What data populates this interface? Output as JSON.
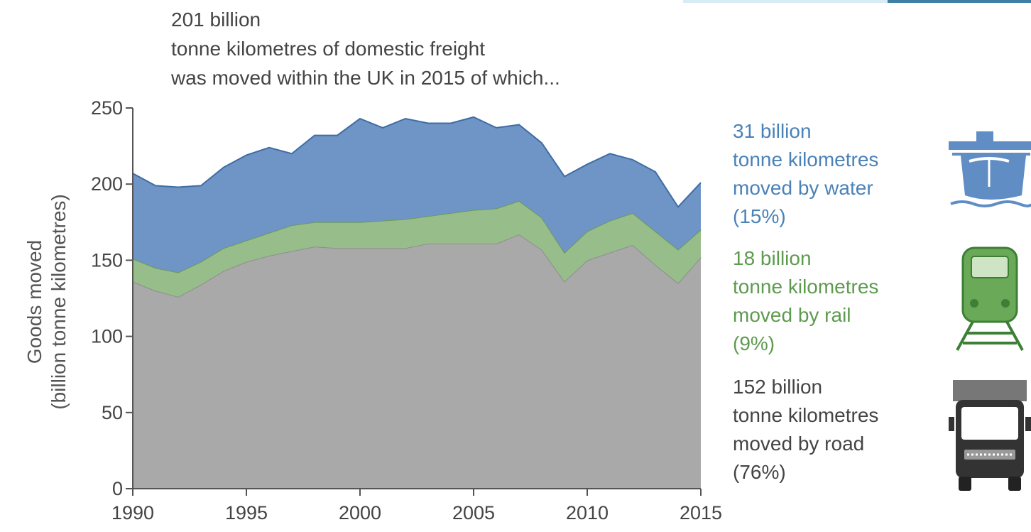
{
  "title_lines": [
    "201 billion",
    "tonne kilometres of domestic freight",
    "was moved within the UK in 2015 of which..."
  ],
  "legend": {
    "water": {
      "lines": [
        "31 billion",
        "tonne kilometres",
        "moved by water",
        "(15%)"
      ],
      "icon": "ship-icon"
    },
    "rail": {
      "lines": [
        "18 billion",
        "tonne kilometres",
        "moved by rail",
        "(9%)"
      ],
      "icon": "train-icon"
    },
    "road": {
      "lines": [
        "152 billion",
        "tonne kilometres",
        "moved by road",
        "(76%)"
      ],
      "icon": "truck-icon"
    }
  },
  "colors": {
    "water": "#6f94c6",
    "rail": "#97be8a",
    "road": "#a9a9a9",
    "water_text": "#4a82b8",
    "rail_text": "#5e9a4f",
    "road_text": "#444444"
  },
  "chart_data": {
    "type": "area",
    "stacked": true,
    "ylabel": [
      "Goods moved",
      "(billion tonne kilometres)"
    ],
    "xlabel": "",
    "x": [
      1990,
      1991,
      1992,
      1993,
      1994,
      1995,
      1996,
      1997,
      1998,
      1999,
      2000,
      2001,
      2002,
      2003,
      2004,
      2005,
      2006,
      2007,
      2008,
      2009,
      2010,
      2011,
      2012,
      2013,
      2014,
      2015
    ],
    "x_ticks": [
      1990,
      1995,
      2000,
      2005,
      2010,
      2015
    ],
    "y_ticks": [
      0,
      50,
      100,
      150,
      200,
      250
    ],
    "xlim": [
      1990,
      2015
    ],
    "ylim": [
      0,
      250
    ],
    "series": [
      {
        "name": "road",
        "values": [
          136,
          130,
          126,
          134,
          143,
          149,
          153,
          156,
          159,
          158,
          158,
          158,
          158,
          161,
          161,
          161,
          161,
          167,
          157,
          136,
          150,
          155,
          160,
          147,
          135,
          152
        ]
      },
      {
        "name": "rail",
        "values": [
          15,
          15,
          16,
          15,
          15,
          14,
          15,
          17,
          16,
          17,
          17,
          18,
          19,
          18,
          20,
          22,
          23,
          22,
          21,
          19,
          19,
          21,
          21,
          22,
          22,
          18
        ]
      },
      {
        "name": "water",
        "values": [
          56,
          54,
          56,
          50,
          53,
          56,
          56,
          47,
          57,
          57,
          68,
          61,
          66,
          61,
          59,
          61,
          53,
          50,
          49,
          50,
          44,
          44,
          35,
          39,
          28,
          31
        ]
      }
    ]
  }
}
